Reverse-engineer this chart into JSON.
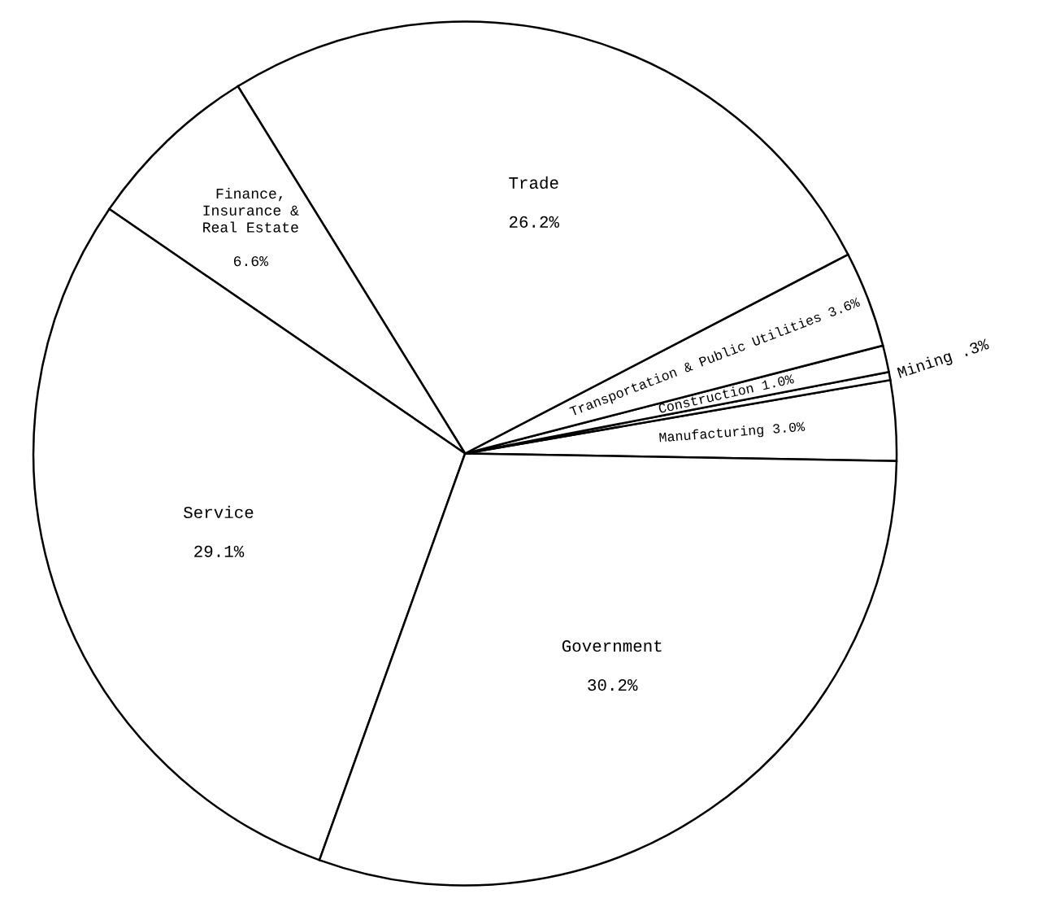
{
  "chart_data": {
    "type": "pie",
    "categories": [
      "Manufacturing",
      "Mining",
      "Construction",
      "Transportation\n& Public Utilities",
      "Trade",
      "Finance,\nInsurance &\nReal Estate",
      "Service",
      "Government"
    ],
    "values": [
      3.0,
      0.3,
      1.0,
      3.6,
      26.2,
      6.6,
      29.1,
      30.2
    ],
    "value_labels": [
      "3.0%",
      ".3%",
      "1.0%",
      "3.6%",
      "26.2%",
      "6.6%",
      "29.1%",
      "30.2%"
    ],
    "colors": [
      "#ffffff",
      "#ffffff",
      "#ffffff",
      "#ffffff",
      "#ffffff",
      "#ffffff",
      "#ffffff",
      "#ffffff"
    ],
    "legend": false
  }
}
